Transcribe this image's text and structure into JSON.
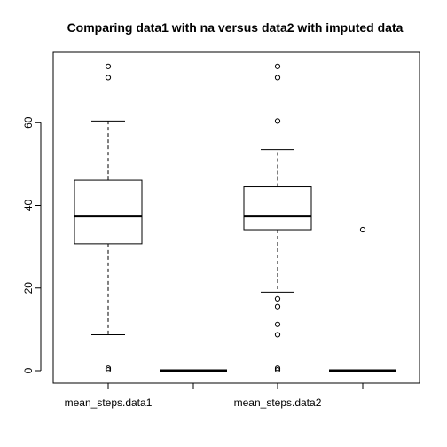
{
  "chart_data": {
    "type": "boxplot",
    "title": "Comparing data1 with na versus data2 with imputed data",
    "xlabel": "",
    "ylabel": "",
    "ylim": [
      -3,
      77
    ],
    "y_ticks": [
      0,
      20,
      40,
      60
    ],
    "x_tick_labels": [
      "mean_steps.data1",
      "",
      "mean_steps.data2",
      ""
    ],
    "grid": false,
    "boxes": [
      {
        "min": 8.7,
        "q1": 30.7,
        "median": 37.4,
        "q3": 46.1,
        "max": 60.4,
        "outliers": [
          73.6,
          70.9,
          0.6,
          0.2
        ]
      },
      {
        "min": 0,
        "q1": 0,
        "median": 0,
        "q3": 0,
        "max": 0,
        "outliers": []
      },
      {
        "min": 19.0,
        "q1": 34.1,
        "median": 37.4,
        "q3": 44.5,
        "max": 53.5,
        "outliers": [
          73.6,
          70.9,
          60.4,
          17.4,
          15.5,
          11.2,
          8.7,
          0.6,
          0.2
        ]
      },
      {
        "min": 0,
        "q1": 0,
        "median": 0,
        "q3": 0,
        "max": 0,
        "outliers": [
          34.1
        ]
      }
    ]
  }
}
